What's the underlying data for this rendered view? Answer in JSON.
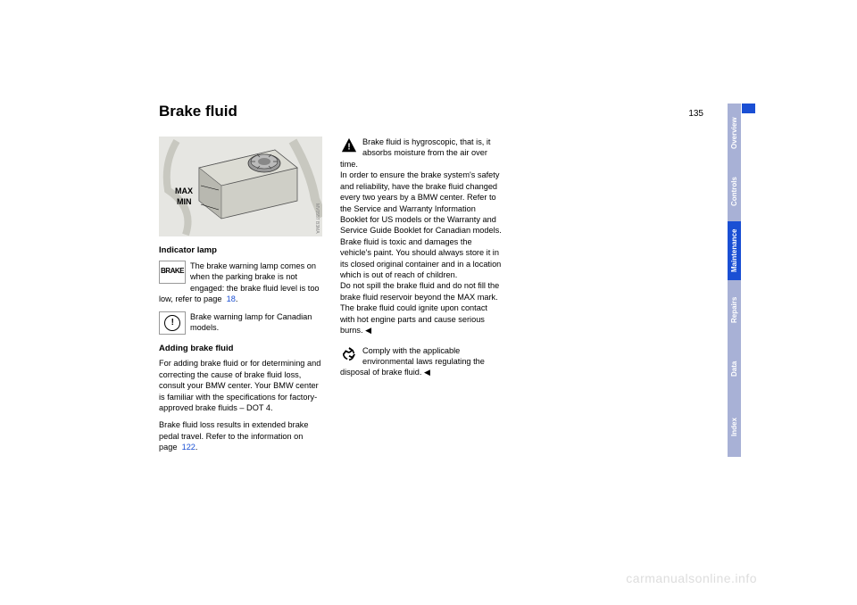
{
  "page_number": "135",
  "title": "Brake fluid",
  "figure": {
    "label_max": "MAX",
    "label_min": "MIN",
    "credit": "MV0557 B3MA"
  },
  "col1": {
    "sub1": "Indicator lamp",
    "brake_icon": "BRAKE",
    "p1a": "The brake warning lamp comes on when the parking brake is not engaged: the brake fluid level is too low, refer to page",
    "p1a_link": "18",
    "p1a_end": ".",
    "p1b": "Brake warning lamp for Canadian models.",
    "sub2": "Adding brake fluid",
    "p2": "For adding brake fluid or for determining and correcting the cause of brake fluid loss, consult your BMW center. Your BMW center is familiar with the specifications for factory-approved brake fluids – DOT 4.",
    "p3a": "Brake fluid loss results in extended brake pedal travel. Refer to the information on page",
    "p3_link": "122",
    "p3b": "."
  },
  "col2": {
    "warn1": "Brake fluid is hygroscopic, that is, it absorbs moisture from the air over time.",
    "warn1b": "In order to ensure the brake system's safety and reliability, have the brake fluid changed every two years by a BMW center. Refer to the Service and Warranty Information Booklet for US models or the Warranty and Service Guide Booklet for Canadian models. Brake fluid is toxic and damages the vehicle's paint. You should always store it in its closed original container and in a location which is out of reach of children.",
    "warn1c": "Do not spill the brake fluid and do not fill the brake fluid reservoir beyond the MAX mark. The brake fluid could ignite upon contact with hot engine parts and cause serious burns.",
    "end1": "◀",
    "recycle": "Comply with the applicable environmental laws regulating the disposal of brake fluid.",
    "end2": "◀"
  },
  "tabs": [
    {
      "label": "Overview",
      "bg": "#a8b1d6"
    },
    {
      "label": "Controls",
      "bg": "#a8b1d6"
    },
    {
      "label": "Maintenance",
      "bg": "#1a4fd4"
    },
    {
      "label": "Repairs",
      "bg": "#a8b1d6"
    },
    {
      "label": "Data",
      "bg": "#a8b1d6"
    },
    {
      "label": "Index",
      "bg": "#a8b1d6"
    }
  ],
  "watermark": "carmanualsonline.info"
}
